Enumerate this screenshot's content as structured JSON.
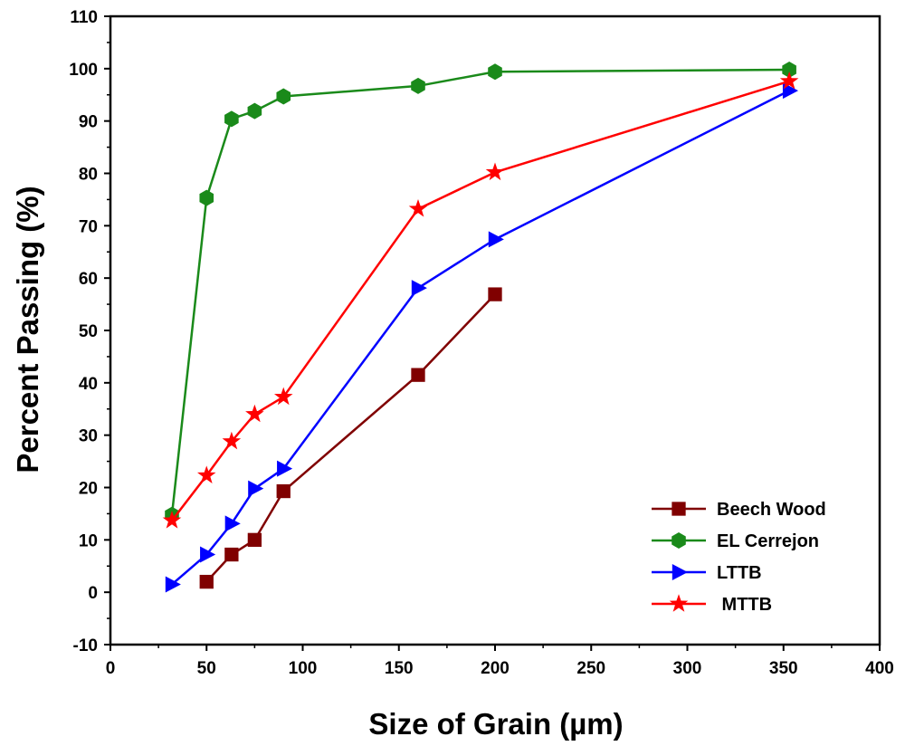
{
  "chart_data": {
    "type": "line",
    "xlabel": "Size of Grain (µm)",
    "ylabel": "Percent Passing (%)",
    "xlim": [
      0,
      400
    ],
    "ylim": [
      -10,
      110
    ],
    "xticks": [
      0,
      50,
      100,
      150,
      200,
      250,
      300,
      350,
      400
    ],
    "yticks": [
      -10,
      0,
      10,
      20,
      30,
      40,
      50,
      60,
      70,
      80,
      90,
      100,
      110
    ],
    "grid": false,
    "legend_position": "bottom-right",
    "series": [
      {
        "name": "Beech Wood",
        "color": "#800000",
        "marker": "square",
        "x": [
          50,
          63,
          75,
          90,
          160,
          200
        ],
        "y": [
          2,
          7.2,
          10,
          19.3,
          41.5,
          56.9
        ]
      },
      {
        "name": "EL Cerrejon",
        "color": "#1a8a1a",
        "marker": "hexagon",
        "x": [
          32,
          50,
          63,
          75,
          90,
          160,
          200,
          353
        ],
        "y": [
          14.8,
          75.3,
          90.4,
          91.9,
          94.7,
          96.7,
          99.4,
          99.8
        ]
      },
      {
        "name": "LTTB",
        "color": "#0000ff",
        "marker": "triangle-right",
        "x": [
          32,
          50,
          63,
          75,
          90,
          160,
          200,
          353
        ],
        "y": [
          1.5,
          7.2,
          13.1,
          19.8,
          23.6,
          58.1,
          67.4,
          95.8
        ]
      },
      {
        "name": " MTTB",
        "color": "#ff0000",
        "marker": "star",
        "x": [
          32,
          50,
          63,
          75,
          90,
          160,
          200,
          353
        ],
        "y": [
          13.7,
          22.3,
          28.8,
          34,
          37.3,
          73.2,
          80.2,
          97.6
        ]
      }
    ]
  }
}
